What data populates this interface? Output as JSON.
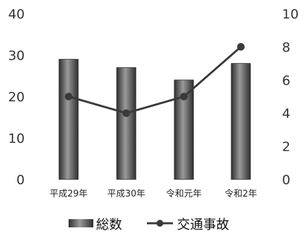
{
  "chart_data": {
    "type": "bar+line",
    "categories": [
      "平成29年",
      "平成30年",
      "令和元年",
      "令和2年"
    ],
    "series": [
      {
        "name": "総数",
        "type": "bar",
        "axis": "left",
        "values": [
          29,
          27,
          24,
          28
        ]
      },
      {
        "name": "交通事故",
        "type": "line",
        "axis": "right",
        "values": [
          5,
          4,
          5,
          8
        ]
      }
    ],
    "y_left": {
      "range": [
        0,
        40
      ],
      "ticks": [
        "0",
        "10",
        "20",
        "30",
        "40"
      ]
    },
    "y_right": {
      "range": [
        0,
        10
      ],
      "ticks": [
        "0",
        "2",
        "4",
        "6",
        "8",
        "10"
      ]
    },
    "grid": false,
    "legend_position": "bottom",
    "colors": {
      "bar": "#4a4a4a",
      "bar_light": "#8c8c8c",
      "line": "#3a3a3a",
      "axis_text": "#333333"
    }
  }
}
